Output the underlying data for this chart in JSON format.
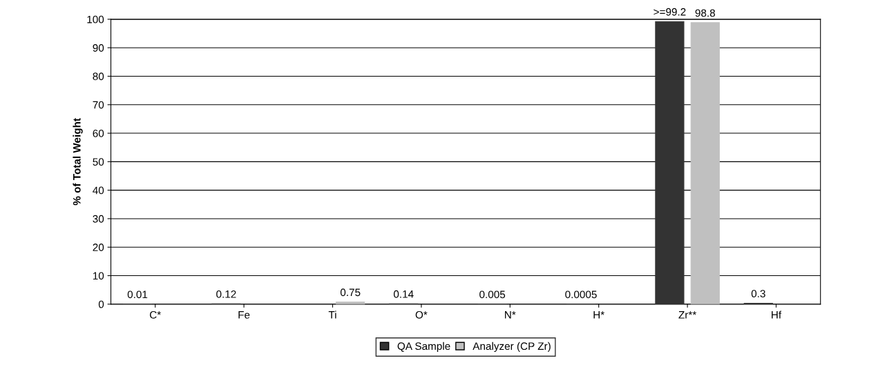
{
  "chart_data": {
    "type": "bar",
    "ylabel": "% of Total Weight",
    "categories": [
      "C*",
      "Fe",
      "Ti",
      "O*",
      "N*",
      "H*",
      "Zr**",
      "Hf"
    ],
    "series": [
      {
        "name": "QA Sample",
        "color": "#333333",
        "values": [
          0.01,
          0.12,
          null,
          0.14,
          0.005,
          0.0005,
          99.2,
          0.3
        ],
        "value_labels": [
          "0.01",
          "0.12",
          null,
          "0.14",
          "0.005",
          "0.0005",
          ">=99.2",
          "0.3"
        ]
      },
      {
        "name": "Analyzer (CP Zr)",
        "color": "#c0c0c0",
        "values": [
          null,
          null,
          0.75,
          null,
          null,
          null,
          98.8,
          null
        ],
        "value_labels": [
          null,
          null,
          "0.75",
          null,
          null,
          null,
          "98.8",
          null
        ]
      }
    ],
    "ylim": [
      0,
      100
    ],
    "yticks": [
      0,
      10,
      20,
      30,
      40,
      50,
      60,
      70,
      80,
      90,
      100
    ],
    "grid": "y",
    "legend": "bottom"
  }
}
